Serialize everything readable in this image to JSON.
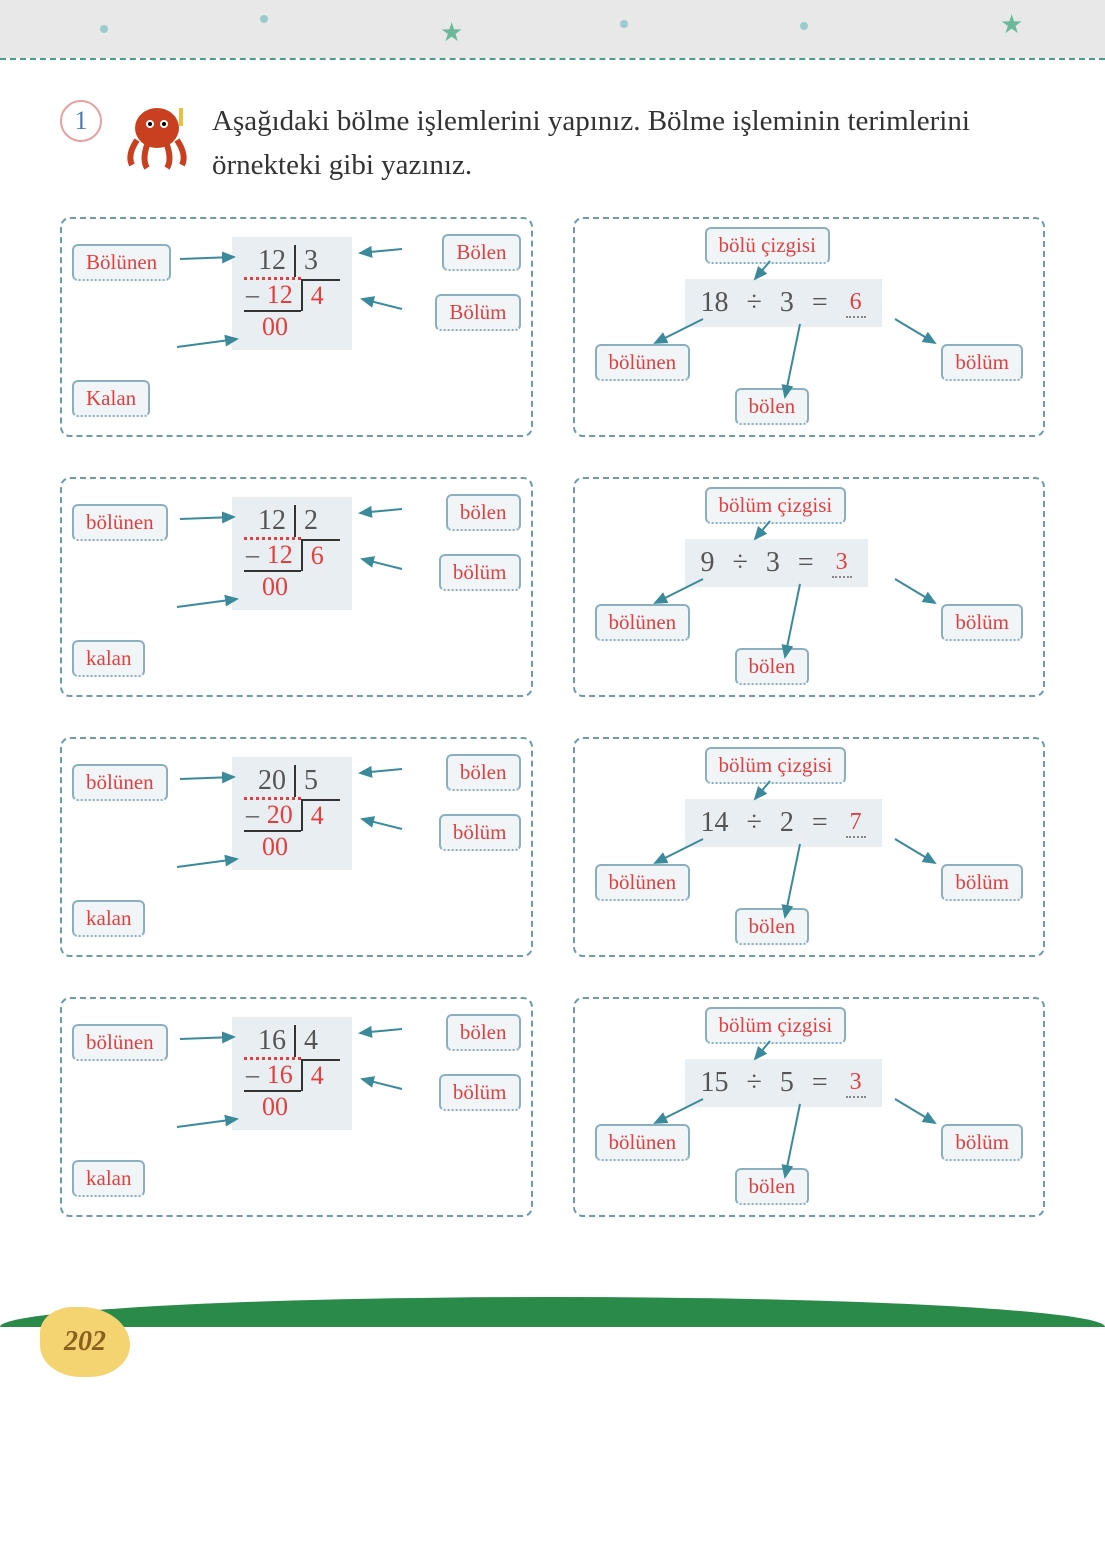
{
  "header": {
    "badge_number": "1",
    "instruction": "Aşağıdaki bölme işlemlerini yapınız. Bölme işleminin terimlerini örnekteki gibi yazınız."
  },
  "labels": {
    "bolunen_example": "Bölünen",
    "bolen_example": "Bölen",
    "bolum_example": "Bölüm",
    "kalan_example": "Kalan",
    "bolunen": "bölünen",
    "bolen": "bölen",
    "bolum": "bölüm",
    "kalan": "kalan",
    "bolu_cizgisi": "bölü çizgisi",
    "bolum_cizgisi": "bölüm çizgisi"
  },
  "colors": {
    "answer": "#e04040",
    "border": "#6b9ca8",
    "box_bg": "#e8eef2",
    "label_border": "#8ab0c0",
    "arrow": "#3a8a9c"
  },
  "left_panels": [
    {
      "dividend": "12",
      "divisor": "3",
      "sub": "12",
      "quotient": "4",
      "remainder": "00",
      "example": true
    },
    {
      "dividend": "12",
      "divisor": "2",
      "sub": "12",
      "quotient": "6",
      "remainder": "00",
      "example": false
    },
    {
      "dividend": "20",
      "divisor": "5",
      "sub": "20",
      "quotient": "4",
      "remainder": "00",
      "example": false
    },
    {
      "dividend": "16",
      "divisor": "4",
      "sub": "16",
      "quotient": "4",
      "remainder": "00",
      "example": false
    }
  ],
  "right_panels": [
    {
      "top_label": "bölü çizgisi",
      "a": "18",
      "b": "3",
      "r": "6"
    },
    {
      "top_label": "bölüm çizgisi",
      "a": "9",
      "b": "3",
      "r": "3"
    },
    {
      "top_label": "bölüm çizgisi",
      "a": "14",
      "b": "2",
      "r": "7"
    },
    {
      "top_label": "bölüm çizgisi",
      "a": "15",
      "b": "5",
      "r": "3"
    }
  ],
  "page_number": "202"
}
